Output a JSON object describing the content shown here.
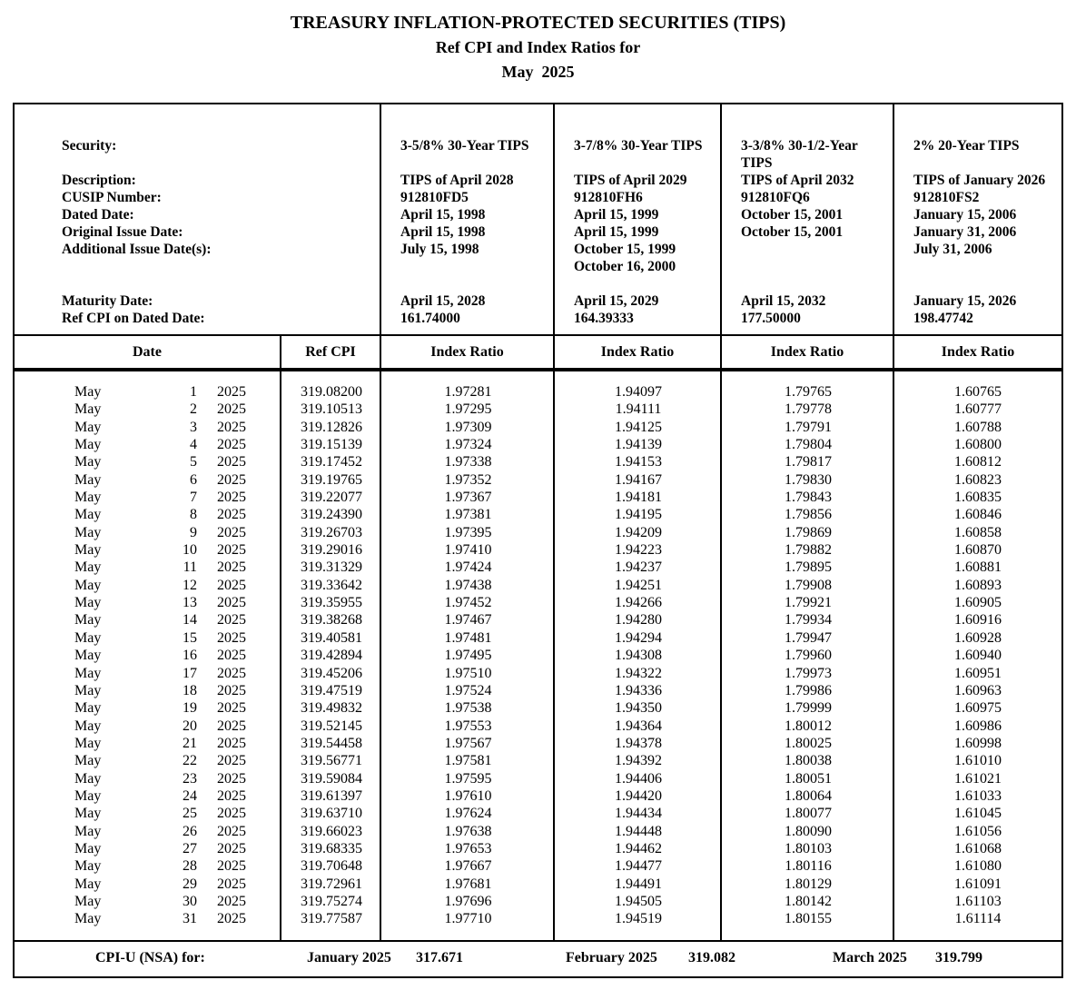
{
  "title": {
    "line1": "TREASURY INFLATION-PROTECTED SECURITIES (TIPS)",
    "line2": "Ref CPI and Index Ratios for",
    "line3": "May  2025"
  },
  "info_section": {
    "label_lines": [
      "Security:",
      "",
      "Description:",
      "CUSIP Number:",
      "Dated Date:",
      "Original Issue Date:",
      "Additional Issue Date(s):",
      "",
      "",
      "Maturity Date:",
      "Ref CPI on Dated Date:"
    ],
    "securities": [
      {
        "lines": [
          "3-5/8% 30-Year TIPS",
          "",
          "TIPS of April 2028",
          "912810FD5",
          "April 15, 1998",
          "April 15, 1998",
          "July 15, 1998",
          "",
          "",
          "April 15, 2028",
          "161.74000"
        ]
      },
      {
        "lines": [
          "3-7/8% 30-Year TIPS",
          "",
          "TIPS of April 2029",
          "912810FH6",
          "April 15, 1999",
          "April 15, 1999",
          "October 15, 1999",
          "October 16, 2000",
          "",
          "April 15, 2029",
          "164.39333"
        ]
      },
      {
        "lines": [
          "3-3/8% 30-1/2-Year",
          "TIPS",
          "TIPS of April 2032",
          "912810FQ6",
          "October 15, 2001",
          "October 15, 2001",
          "",
          "",
          "",
          "April 15, 2032",
          "177.50000"
        ]
      },
      {
        "lines": [
          "2% 20-Year TIPS",
          "",
          "TIPS of January 2026",
          "912810FS2",
          "January 15, 2006",
          "January 31, 2006",
          "July 31, 2006",
          "",
          "",
          "January 15, 2026",
          "198.47742"
        ]
      }
    ]
  },
  "table": {
    "headers": [
      "Date",
      "Ref CPI",
      "Index Ratio",
      "Index Ratio",
      "Index Ratio",
      "Index Ratio"
    ],
    "rows": [
      {
        "month": "May",
        "day": "1",
        "year": "2025",
        "ref_cpi": "319.08200",
        "ratios": [
          "1.97281",
          "1.94097",
          "1.79765",
          "1.60765"
        ]
      },
      {
        "month": "May",
        "day": "2",
        "year": "2025",
        "ref_cpi": "319.10513",
        "ratios": [
          "1.97295",
          "1.94111",
          "1.79778",
          "1.60777"
        ]
      },
      {
        "month": "May",
        "day": "3",
        "year": "2025",
        "ref_cpi": "319.12826",
        "ratios": [
          "1.97309",
          "1.94125",
          "1.79791",
          "1.60788"
        ]
      },
      {
        "month": "May",
        "day": "4",
        "year": "2025",
        "ref_cpi": "319.15139",
        "ratios": [
          "1.97324",
          "1.94139",
          "1.79804",
          "1.60800"
        ]
      },
      {
        "month": "May",
        "day": "5",
        "year": "2025",
        "ref_cpi": "319.17452",
        "ratios": [
          "1.97338",
          "1.94153",
          "1.79817",
          "1.60812"
        ]
      },
      {
        "month": "May",
        "day": "6",
        "year": "2025",
        "ref_cpi": "319.19765",
        "ratios": [
          "1.97352",
          "1.94167",
          "1.79830",
          "1.60823"
        ]
      },
      {
        "month": "May",
        "day": "7",
        "year": "2025",
        "ref_cpi": "319.22077",
        "ratios": [
          "1.97367",
          "1.94181",
          "1.79843",
          "1.60835"
        ]
      },
      {
        "month": "May",
        "day": "8",
        "year": "2025",
        "ref_cpi": "319.24390",
        "ratios": [
          "1.97381",
          "1.94195",
          "1.79856",
          "1.60846"
        ]
      },
      {
        "month": "May",
        "day": "9",
        "year": "2025",
        "ref_cpi": "319.26703",
        "ratios": [
          "1.97395",
          "1.94209",
          "1.79869",
          "1.60858"
        ]
      },
      {
        "month": "May",
        "day": "10",
        "year": "2025",
        "ref_cpi": "319.29016",
        "ratios": [
          "1.97410",
          "1.94223",
          "1.79882",
          "1.60870"
        ]
      },
      {
        "month": "May",
        "day": "11",
        "year": "2025",
        "ref_cpi": "319.31329",
        "ratios": [
          "1.97424",
          "1.94237",
          "1.79895",
          "1.60881"
        ]
      },
      {
        "month": "May",
        "day": "12",
        "year": "2025",
        "ref_cpi": "319.33642",
        "ratios": [
          "1.97438",
          "1.94251",
          "1.79908",
          "1.60893"
        ]
      },
      {
        "month": "May",
        "day": "13",
        "year": "2025",
        "ref_cpi": "319.35955",
        "ratios": [
          "1.97452",
          "1.94266",
          "1.79921",
          "1.60905"
        ]
      },
      {
        "month": "May",
        "day": "14",
        "year": "2025",
        "ref_cpi": "319.38268",
        "ratios": [
          "1.97467",
          "1.94280",
          "1.79934",
          "1.60916"
        ]
      },
      {
        "month": "May",
        "day": "15",
        "year": "2025",
        "ref_cpi": "319.40581",
        "ratios": [
          "1.97481",
          "1.94294",
          "1.79947",
          "1.60928"
        ]
      },
      {
        "month": "May",
        "day": "16",
        "year": "2025",
        "ref_cpi": "319.42894",
        "ratios": [
          "1.97495",
          "1.94308",
          "1.79960",
          "1.60940"
        ]
      },
      {
        "month": "May",
        "day": "17",
        "year": "2025",
        "ref_cpi": "319.45206",
        "ratios": [
          "1.97510",
          "1.94322",
          "1.79973",
          "1.60951"
        ]
      },
      {
        "month": "May",
        "day": "18",
        "year": "2025",
        "ref_cpi": "319.47519",
        "ratios": [
          "1.97524",
          "1.94336",
          "1.79986",
          "1.60963"
        ]
      },
      {
        "month": "May",
        "day": "19",
        "year": "2025",
        "ref_cpi": "319.49832",
        "ratios": [
          "1.97538",
          "1.94350",
          "1.79999",
          "1.60975"
        ]
      },
      {
        "month": "May",
        "day": "20",
        "year": "2025",
        "ref_cpi": "319.52145",
        "ratios": [
          "1.97553",
          "1.94364",
          "1.80012",
          "1.60986"
        ]
      },
      {
        "month": "May",
        "day": "21",
        "year": "2025",
        "ref_cpi": "319.54458",
        "ratios": [
          "1.97567",
          "1.94378",
          "1.80025",
          "1.60998"
        ]
      },
      {
        "month": "May",
        "day": "22",
        "year": "2025",
        "ref_cpi": "319.56771",
        "ratios": [
          "1.97581",
          "1.94392",
          "1.80038",
          "1.61010"
        ]
      },
      {
        "month": "May",
        "day": "23",
        "year": "2025",
        "ref_cpi": "319.59084",
        "ratios": [
          "1.97595",
          "1.94406",
          "1.80051",
          "1.61021"
        ]
      },
      {
        "month": "May",
        "day": "24",
        "year": "2025",
        "ref_cpi": "319.61397",
        "ratios": [
          "1.97610",
          "1.94420",
          "1.80064",
          "1.61033"
        ]
      },
      {
        "month": "May",
        "day": "25",
        "year": "2025",
        "ref_cpi": "319.63710",
        "ratios": [
          "1.97624",
          "1.94434",
          "1.80077",
          "1.61045"
        ]
      },
      {
        "month": "May",
        "day": "26",
        "year": "2025",
        "ref_cpi": "319.66023",
        "ratios": [
          "1.97638",
          "1.94448",
          "1.80090",
          "1.61056"
        ]
      },
      {
        "month": "May",
        "day": "27",
        "year": "2025",
        "ref_cpi": "319.68335",
        "ratios": [
          "1.97653",
          "1.94462",
          "1.80103",
          "1.61068"
        ]
      },
      {
        "month": "May",
        "day": "28",
        "year": "2025",
        "ref_cpi": "319.70648",
        "ratios": [
          "1.97667",
          "1.94477",
          "1.80116",
          "1.61080"
        ]
      },
      {
        "month": "May",
        "day": "29",
        "year": "2025",
        "ref_cpi": "319.72961",
        "ratios": [
          "1.97681",
          "1.94491",
          "1.80129",
          "1.61091"
        ]
      },
      {
        "month": "May",
        "day": "30",
        "year": "2025",
        "ref_cpi": "319.75274",
        "ratios": [
          "1.97696",
          "1.94505",
          "1.80142",
          "1.61103"
        ]
      },
      {
        "month": "May",
        "day": "31",
        "year": "2025",
        "ref_cpi": "319.77587",
        "ratios": [
          "1.97710",
          "1.94519",
          "1.80155",
          "1.61114"
        ]
      }
    ]
  },
  "footer": {
    "label": "CPI-U (NSA) for:",
    "entries": [
      {
        "month": "January 2025",
        "value": "317.671"
      },
      {
        "month": "February 2025",
        "value": "319.082"
      },
      {
        "month": "March 2025",
        "value": "319.799"
      }
    ]
  }
}
